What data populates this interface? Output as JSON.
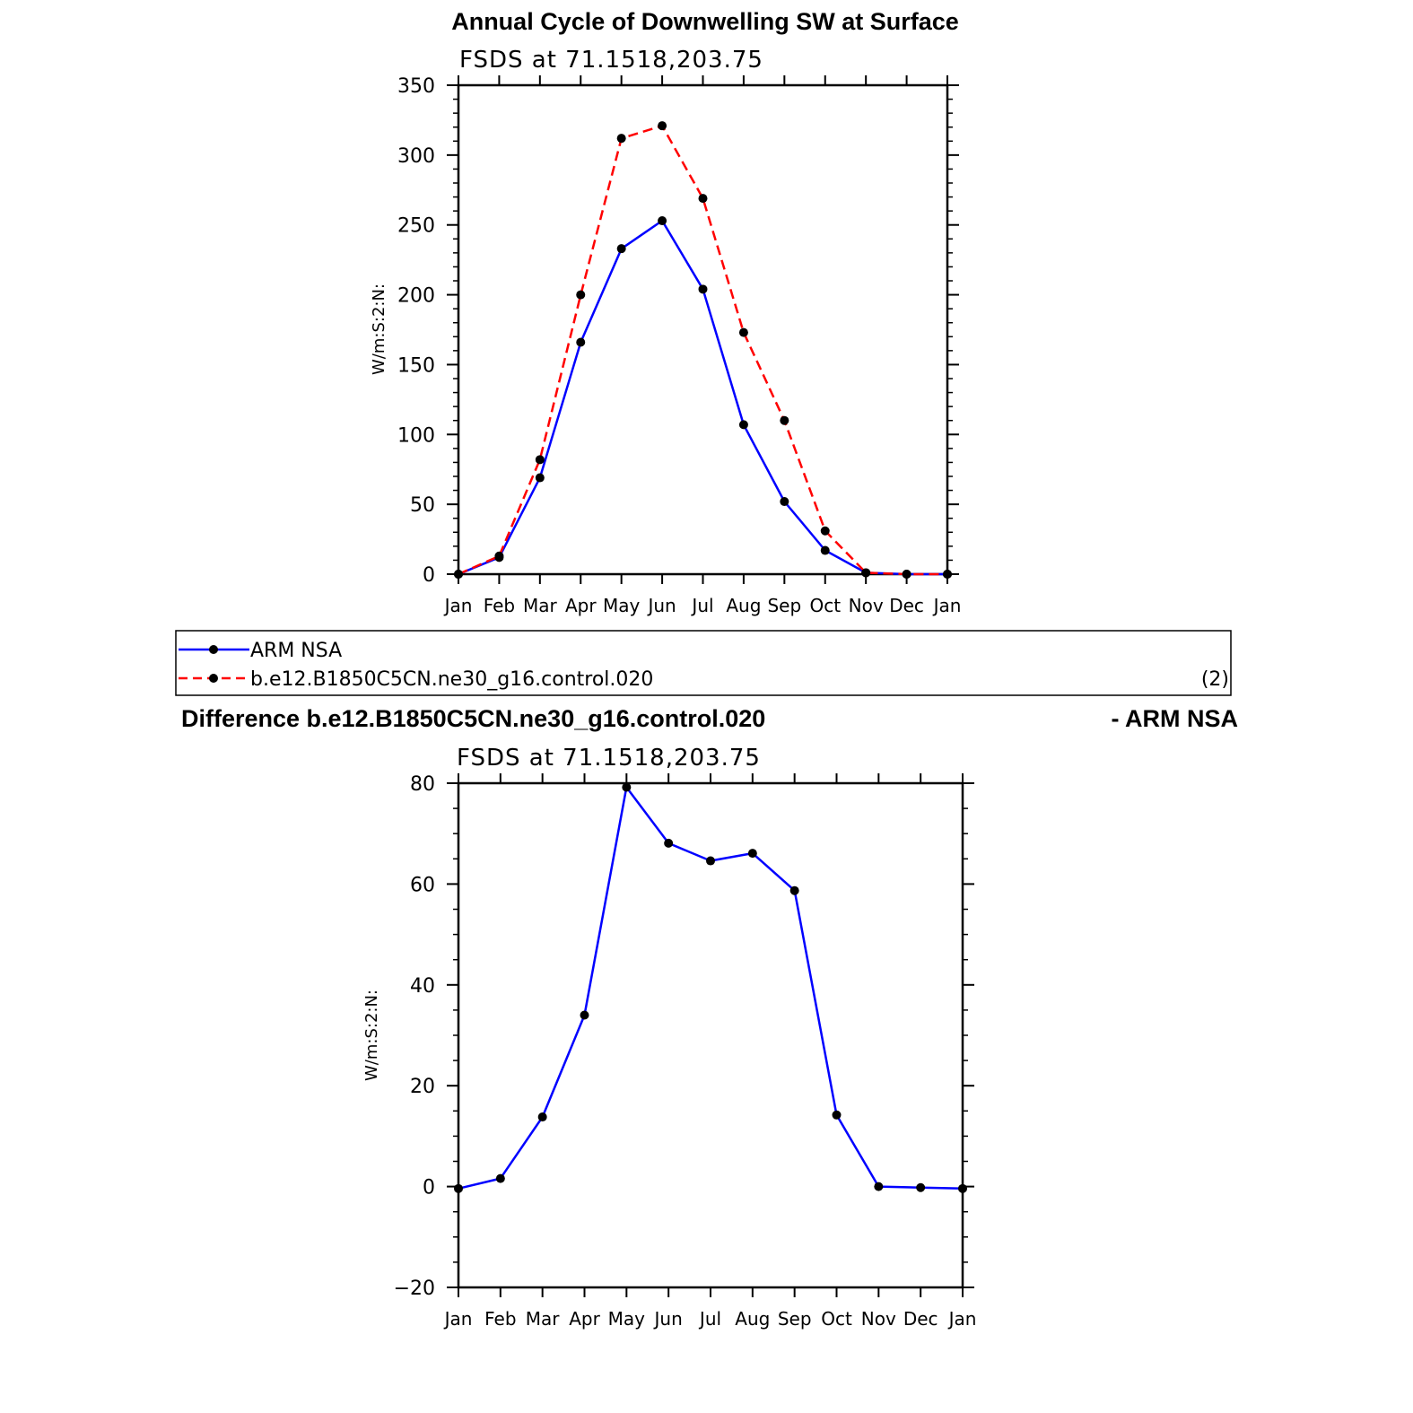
{
  "chart_data": [
    {
      "type": "line",
      "title": "Annual Cycle of Downwelling SW at Surface",
      "subtitle": "FSDS at 71.1518,203.75",
      "ylabel": "W/m:S:2:N:",
      "ylim": [
        0,
        350
      ],
      "yticks": [
        "0",
        "50",
        "100",
        "150",
        "200",
        "250",
        "300",
        "350"
      ],
      "categories": [
        "Jan",
        "Feb",
        "Mar",
        "Apr",
        "May",
        "Jun",
        "Jul",
        "Aug",
        "Sep",
        "Oct",
        "Nov",
        "Dec",
        "Jan"
      ],
      "series": [
        {
          "name": "ARM NSA",
          "color": "#0000ff",
          "dash": "solid",
          "values": [
            0,
            12,
            69,
            166,
            233,
            253,
            204,
            107,
            52,
            17,
            1,
            0,
            0
          ]
        },
        {
          "name": "b.e12.B1850C5CN.ne30_g16.control.020",
          "color": "#ff0000",
          "dash": "dashed",
          "values": [
            0,
            13,
            82,
            200,
            312,
            321,
            269,
            173,
            110,
            31,
            1,
            0,
            0
          ]
        }
      ],
      "legend": {
        "position": "bottom",
        "label": "(2)"
      }
    },
    {
      "type": "line",
      "title_left": "Difference b.e12.B1850C5CN.ne30_g16.control.020",
      "title_right": "- ARM NSA",
      "subtitle": "FSDS at 71.1518,203.75",
      "ylabel": "W/m:S:2:N:",
      "ylim": [
        -20,
        80
      ],
      "yticks": [
        "−20",
        "0",
        "20",
        "40",
        "60",
        "80"
      ],
      "categories": [
        "Jan",
        "Feb",
        "Mar",
        "Apr",
        "May",
        "Jun",
        "Jul",
        "Aug",
        "Sep",
        "Oct",
        "Nov",
        "Dec",
        "Jan"
      ],
      "series": [
        {
          "color": "#0000ff",
          "values": [
            -0.4,
            1.6,
            13.8,
            34.0,
            79.2,
            68.1,
            64.6,
            66.1,
            58.7,
            14.2,
            0,
            -0.2,
            -0.4
          ]
        }
      ]
    }
  ]
}
